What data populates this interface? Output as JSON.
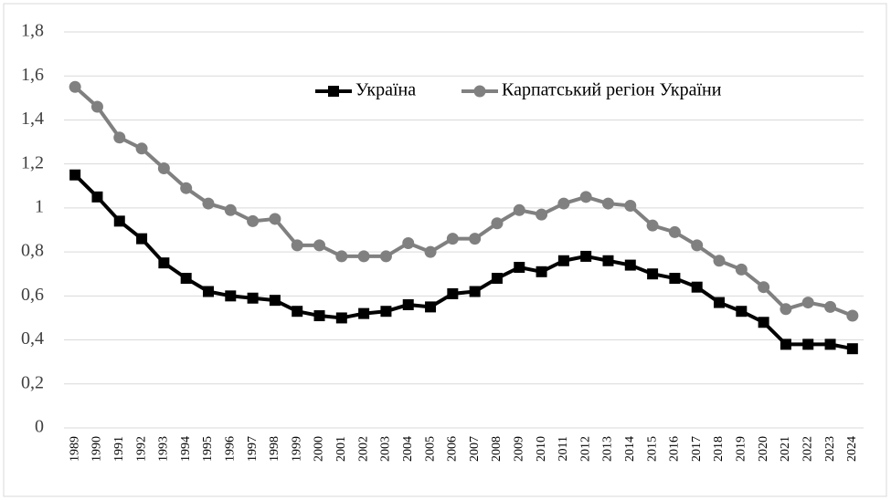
{
  "chart_data": {
    "type": "line",
    "categories": [
      "1989",
      "1990",
      "1991",
      "1992",
      "1993",
      "1994",
      "1995",
      "1996",
      "1997",
      "1998",
      "1999",
      "2000",
      "2001",
      "2002",
      "2003",
      "2004",
      "2005",
      "2006",
      "2007",
      "2008",
      "2009",
      "2010",
      "2011",
      "2012",
      "2013",
      "2014",
      "2015",
      "2016",
      "2017",
      "2018",
      "2019",
      "2020",
      "2021",
      "2022",
      "2023",
      "2024"
    ],
    "series": [
      {
        "name": "Україна",
        "color": "#000000",
        "marker": "square",
        "values": [
          1.15,
          1.05,
          0.94,
          0.86,
          0.75,
          0.68,
          0.62,
          0.6,
          0.59,
          0.58,
          0.53,
          0.51,
          0.5,
          0.52,
          0.53,
          0.56,
          0.55,
          0.61,
          0.62,
          0.68,
          0.73,
          0.71,
          0.76,
          0.78,
          0.76,
          0.74,
          0.7,
          0.68,
          0.64,
          0.57,
          0.53,
          0.48,
          0.38,
          0.38,
          0.38,
          0.36
        ]
      },
      {
        "name": "Карпатський регіон України",
        "color": "#808080",
        "marker": "circle",
        "values": [
          1.55,
          1.46,
          1.32,
          1.27,
          1.18,
          1.09,
          1.02,
          0.99,
          0.94,
          0.95,
          0.83,
          0.83,
          0.78,
          0.78,
          0.78,
          0.84,
          0.8,
          0.86,
          0.86,
          0.93,
          0.99,
          0.97,
          1.02,
          1.05,
          1.02,
          1.01,
          0.92,
          0.89,
          0.83,
          0.76,
          0.72,
          0.64,
          0.54,
          0.57,
          0.55,
          0.51
        ]
      }
    ],
    "ylim": [
      0,
      1.8
    ],
    "yticks": [
      0,
      {
        "value": 0.2,
        "label": "0,2"
      },
      {
        "value": 0.4,
        "label": "0,4"
      },
      {
        "value": 0.6,
        "label": "0,6"
      },
      {
        "value": 0.8,
        "label": "0,8"
      },
      1,
      {
        "value": 1.2,
        "label": "1,2"
      },
      {
        "value": 1.4,
        "label": "1,4"
      },
      {
        "value": 1.6,
        "label": "1,6"
      },
      {
        "value": 1.8,
        "label": "1,8"
      }
    ],
    "grid": true,
    "legend": "top"
  }
}
